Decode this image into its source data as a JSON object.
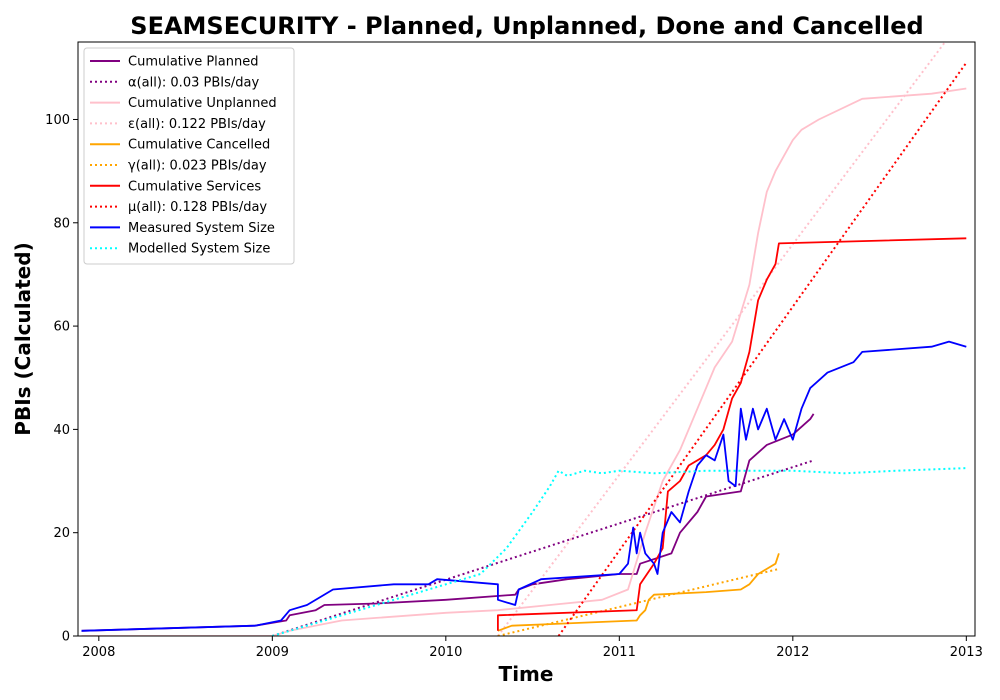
{
  "chart_data": {
    "type": "line",
    "title": "SEAMSECURITY - Planned, Unplanned, Done  and Cancelled",
    "xlabel": "Time",
    "ylabel": "PBIs (Calculated)",
    "xlim": [
      2007.88,
      2013.05
    ],
    "ylim": [
      0,
      115
    ],
    "x_ticks": [
      {
        "label": "2008",
        "value": 2008
      },
      {
        "label": "2009",
        "value": 2009
      },
      {
        "label": "2010",
        "value": 2010
      },
      {
        "label": "2011",
        "value": 2011
      },
      {
        "label": "2012",
        "value": 2012
      },
      {
        "label": "2013",
        "value": 2013
      }
    ],
    "y_ticks": [
      0,
      20,
      40,
      60,
      80,
      100
    ],
    "grid": false,
    "legend_position": "top-left",
    "series": [
      {
        "name": "Cumulative Planned",
        "color": "#800080",
        "style": "solid",
        "points": [
          [
            2007.9,
            1
          ],
          [
            2008.9,
            2
          ],
          [
            2009.08,
            3
          ],
          [
            2009.1,
            4
          ],
          [
            2009.25,
            5
          ],
          [
            2009.3,
            6
          ],
          [
            2009.6,
            6.3
          ],
          [
            2010.0,
            7
          ],
          [
            2010.4,
            8
          ],
          [
            2010.42,
            9
          ],
          [
            2010.5,
            10
          ],
          [
            2010.7,
            11
          ],
          [
            2011.0,
            12
          ],
          [
            2011.1,
            12
          ],
          [
            2011.12,
            14
          ],
          [
            2011.3,
            16
          ],
          [
            2011.35,
            20
          ],
          [
            2011.45,
            24
          ],
          [
            2011.5,
            27
          ],
          [
            2011.7,
            28
          ],
          [
            2011.75,
            34
          ],
          [
            2011.85,
            37
          ],
          [
            2012.0,
            39
          ],
          [
            2012.1,
            42
          ],
          [
            2012.12,
            43
          ]
        ]
      },
      {
        "name": "α(all): 0.03 PBIs/day",
        "color": "#800080",
        "style": "dotted",
        "points": [
          [
            2009.0,
            0
          ],
          [
            2012.12,
            34
          ]
        ]
      },
      {
        "name": "Cumulative Unplanned",
        "color": "#ffc0cb",
        "style": "solid",
        "points": [
          [
            2007.9,
            0
          ],
          [
            2009.0,
            0
          ],
          [
            2009.1,
            1
          ],
          [
            2009.4,
            3
          ],
          [
            2009.6,
            3.5
          ],
          [
            2010.0,
            4.5
          ],
          [
            2010.3,
            5
          ],
          [
            2010.6,
            6
          ],
          [
            2010.9,
            7
          ],
          [
            2011.05,
            9
          ],
          [
            2011.15,
            20
          ],
          [
            2011.25,
            30
          ],
          [
            2011.35,
            36
          ],
          [
            2011.45,
            44
          ],
          [
            2011.55,
            52
          ],
          [
            2011.65,
            57
          ],
          [
            2011.75,
            68
          ],
          [
            2011.8,
            78
          ],
          [
            2011.85,
            86
          ],
          [
            2011.9,
            90
          ],
          [
            2011.95,
            93
          ],
          [
            2012.0,
            96
          ],
          [
            2012.05,
            98
          ],
          [
            2012.15,
            100
          ],
          [
            2012.4,
            104
          ],
          [
            2012.8,
            105
          ],
          [
            2013.0,
            106
          ]
        ]
      },
      {
        "name": "ε(all): 0.122 PBIs/day",
        "color": "#ffc0cb",
        "style": "dotted",
        "points": [
          [
            2010.3,
            0
          ],
          [
            2012.9,
            116
          ]
        ]
      },
      {
        "name": "Cumulative Cancelled",
        "color": "#ffa500",
        "style": "solid",
        "points": [
          [
            2010.3,
            1
          ],
          [
            2010.38,
            2
          ],
          [
            2010.6,
            2.3
          ],
          [
            2010.8,
            2.6
          ],
          [
            2011.1,
            3
          ],
          [
            2011.12,
            4
          ],
          [
            2011.15,
            5
          ],
          [
            2011.17,
            7
          ],
          [
            2011.2,
            8
          ],
          [
            2011.5,
            8.5
          ],
          [
            2011.7,
            9
          ],
          [
            2011.75,
            10
          ],
          [
            2011.8,
            12
          ],
          [
            2011.85,
            13
          ],
          [
            2011.9,
            14
          ],
          [
            2011.92,
            16
          ]
        ]
      },
      {
        "name": "γ(all): 0.023 PBIs/day",
        "color": "#ffa500",
        "style": "dotted",
        "points": [
          [
            2010.3,
            0
          ],
          [
            2011.92,
            13
          ]
        ]
      },
      {
        "name": "Cumulative Services",
        "color": "#ff0000",
        "style": "solid",
        "points": [
          [
            2010.3,
            1
          ],
          [
            2010.3,
            4
          ],
          [
            2011.1,
            5
          ],
          [
            2011.12,
            10
          ],
          [
            2011.2,
            14
          ],
          [
            2011.25,
            17
          ],
          [
            2011.28,
            28
          ],
          [
            2011.35,
            30
          ],
          [
            2011.4,
            33
          ],
          [
            2011.5,
            35
          ],
          [
            2011.55,
            37
          ],
          [
            2011.6,
            40
          ],
          [
            2011.65,
            46
          ],
          [
            2011.7,
            49
          ],
          [
            2011.75,
            55
          ],
          [
            2011.8,
            65
          ],
          [
            2011.85,
            69
          ],
          [
            2011.9,
            72
          ],
          [
            2011.92,
            76
          ],
          [
            2013.0,
            77
          ]
        ]
      },
      {
        "name": "μ(all): 0.128 PBIs/day",
        "color": "#ff0000",
        "style": "dotted",
        "points": [
          [
            2010.65,
            0
          ],
          [
            2013.0,
            111
          ]
        ]
      },
      {
        "name": "Measured System Size",
        "color": "#0000ff",
        "style": "solid",
        "points": [
          [
            2007.9,
            1
          ],
          [
            2008.9,
            2
          ],
          [
            2009.05,
            3
          ],
          [
            2009.1,
            5
          ],
          [
            2009.2,
            6
          ],
          [
            2009.35,
            9
          ],
          [
            2009.7,
            10
          ],
          [
            2009.9,
            10
          ],
          [
            2009.95,
            11
          ],
          [
            2010.3,
            10
          ],
          [
            2010.3,
            7
          ],
          [
            2010.4,
            6
          ],
          [
            2010.42,
            9
          ],
          [
            2010.55,
            11
          ],
          [
            2011.0,
            12
          ],
          [
            2011.05,
            14
          ],
          [
            2011.08,
            21
          ],
          [
            2011.1,
            16
          ],
          [
            2011.12,
            20
          ],
          [
            2011.15,
            16
          ],
          [
            2011.2,
            14
          ],
          [
            2011.22,
            12
          ],
          [
            2011.25,
            20
          ],
          [
            2011.3,
            24
          ],
          [
            2011.35,
            22
          ],
          [
            2011.4,
            28
          ],
          [
            2011.45,
            33
          ],
          [
            2011.5,
            35
          ],
          [
            2011.55,
            34
          ],
          [
            2011.6,
            39
          ],
          [
            2011.63,
            30
          ],
          [
            2011.67,
            29
          ],
          [
            2011.7,
            44
          ],
          [
            2011.73,
            38
          ],
          [
            2011.77,
            44
          ],
          [
            2011.8,
            40
          ],
          [
            2011.85,
            44
          ],
          [
            2011.9,
            38
          ],
          [
            2011.95,
            42
          ],
          [
            2012.0,
            38
          ],
          [
            2012.05,
            44
          ],
          [
            2012.1,
            48
          ],
          [
            2012.2,
            51
          ],
          [
            2012.35,
            53
          ],
          [
            2012.4,
            55
          ],
          [
            2012.8,
            56
          ],
          [
            2012.9,
            57
          ],
          [
            2013.0,
            56
          ]
        ]
      },
      {
        "name": "Modelled System Size",
        "color": "#00ffff",
        "style": "dotted",
        "points": [
          [
            2009.0,
            0
          ],
          [
            2009.3,
            3
          ],
          [
            2009.6,
            6
          ],
          [
            2009.9,
            9
          ],
          [
            2010.2,
            12
          ],
          [
            2010.35,
            17
          ],
          [
            2010.5,
            24
          ],
          [
            2010.6,
            29
          ],
          [
            2010.65,
            32
          ],
          [
            2010.7,
            31
          ],
          [
            2010.8,
            32
          ],
          [
            2010.9,
            31.5
          ],
          [
            2011.0,
            32
          ],
          [
            2011.2,
            31.5
          ],
          [
            2011.5,
            32
          ],
          [
            2011.8,
            32
          ],
          [
            2012.0,
            32
          ],
          [
            2012.3,
            31.5
          ],
          [
            2012.6,
            32
          ],
          [
            2013.0,
            32.5
          ]
        ]
      }
    ]
  }
}
